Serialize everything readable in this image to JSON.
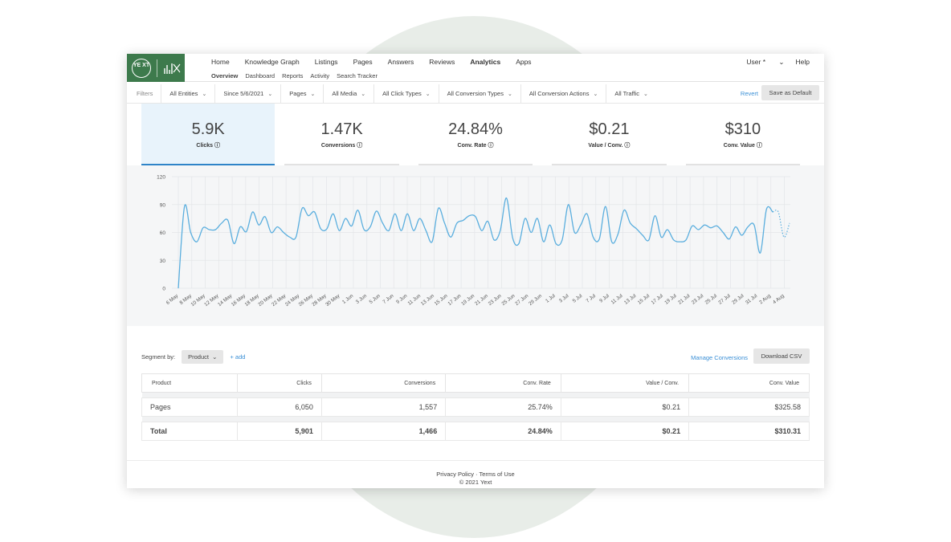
{
  "nav": {
    "main": [
      "Home",
      "Knowledge Graph",
      "Listings",
      "Pages",
      "Answers",
      "Reviews",
      "Analytics",
      "Apps"
    ],
    "active": "Analytics",
    "sub": [
      "Overview",
      "Dashboard",
      "Reports",
      "Activity",
      "Search Tracker"
    ],
    "sub_active": "Overview",
    "user": "User",
    "help": "Help",
    "logo_text": "YE XT"
  },
  "filters": {
    "label": "Filters",
    "chips": [
      "All Entities",
      "Since 5/6/2021",
      "Pages",
      "All Media",
      "All Click Types",
      "All Conversion Types",
      "All Conversion Actions",
      "All Traffic"
    ],
    "revert": "Revert",
    "save_default": "Save as Default"
  },
  "metrics": [
    {
      "value": "5.9K",
      "label": "Clicks ⓘ"
    },
    {
      "value": "1.47K",
      "label": "Conversions ⓘ"
    },
    {
      "value": "24.84%",
      "label": "Conv. Rate ⓘ"
    },
    {
      "value": "$0.21",
      "label": "Value / Conv. ⓘ"
    },
    {
      "value": "$310",
      "label": "Conv. Value ⓘ"
    }
  ],
  "chart_data": {
    "type": "line",
    "ylim": [
      0,
      120
    ],
    "yticks": [
      0,
      30,
      60,
      90,
      120
    ],
    "x_ticks": [
      "6 May",
      "8 May",
      "10 May",
      "12 May",
      "14 May",
      "16 May",
      "18 May",
      "20 May",
      "22 May",
      "24 May",
      "26 May",
      "28 May",
      "30 May",
      "1 Jun",
      "3 Jun",
      "5 Jun",
      "7 Jun",
      "9 Jun",
      "11 Jun",
      "13 Jun",
      "15 Jun",
      "17 Jun",
      "19 Jun",
      "21 Jun",
      "23 Jun",
      "25 Jun",
      "27 Jun",
      "29 Jun",
      "1 Jul",
      "3 Jul",
      "5 Jul",
      "7 Jul",
      "9 Jul",
      "11 Jul",
      "13 Jul",
      "15 Jul",
      "17 Jul",
      "19 Jul",
      "21 Jul",
      "23 Jul",
      "25 Jul",
      "27 Jul",
      "29 Jul",
      "31 Jul",
      "2 Aug",
      "4 Aug"
    ],
    "series": [
      {
        "values": [
          0,
          88,
          60,
          50,
          65,
          63,
          63,
          70,
          73,
          48,
          66,
          61,
          82,
          68,
          77,
          60,
          66,
          60,
          55,
          55,
          86,
          78,
          82,
          64,
          64,
          80,
          62,
          75,
          67,
          84,
          63,
          66,
          83,
          70,
          62,
          80,
          62,
          80,
          62,
          75,
          62,
          50,
          86,
          70,
          55,
          70,
          73,
          78,
          77,
          62,
          72,
          52,
          62,
          97,
          54,
          48,
          75,
          60,
          75,
          50,
          68,
          48,
          52,
          90,
          60,
          68,
          80,
          55,
          53,
          88,
          50,
          58,
          84,
          70,
          64,
          57,
          52,
          78,
          55,
          63,
          52,
          50,
          52,
          67,
          63,
          68,
          65,
          67,
          60,
          53,
          66,
          57,
          66,
          68,
          38,
          85,
          82
        ]
      },
      {
        "values": [
          82,
          55,
          70
        ],
        "dashed": true
      }
    ]
  },
  "segment": {
    "label": "Segment by:",
    "value": "Product",
    "add": "+ add"
  },
  "actions": {
    "manage": "Manage Conversions",
    "download": "Download CSV"
  },
  "table": {
    "headers": [
      "Product",
      "Clicks",
      "Conversions",
      "Conv. Rate",
      "Value / Conv.",
      "Conv. Value"
    ],
    "rows": [
      [
        "Pages",
        "6,050",
        "1,557",
        "25.74%",
        "$0.21",
        "$325.58"
      ]
    ],
    "total": [
      "Total",
      "5,901",
      "1,466",
      "24.84%",
      "$0.21",
      "$310.31"
    ]
  },
  "footer": {
    "line1": "Privacy Policy · Terms of Use",
    "line2": "© 2021 Yext"
  }
}
